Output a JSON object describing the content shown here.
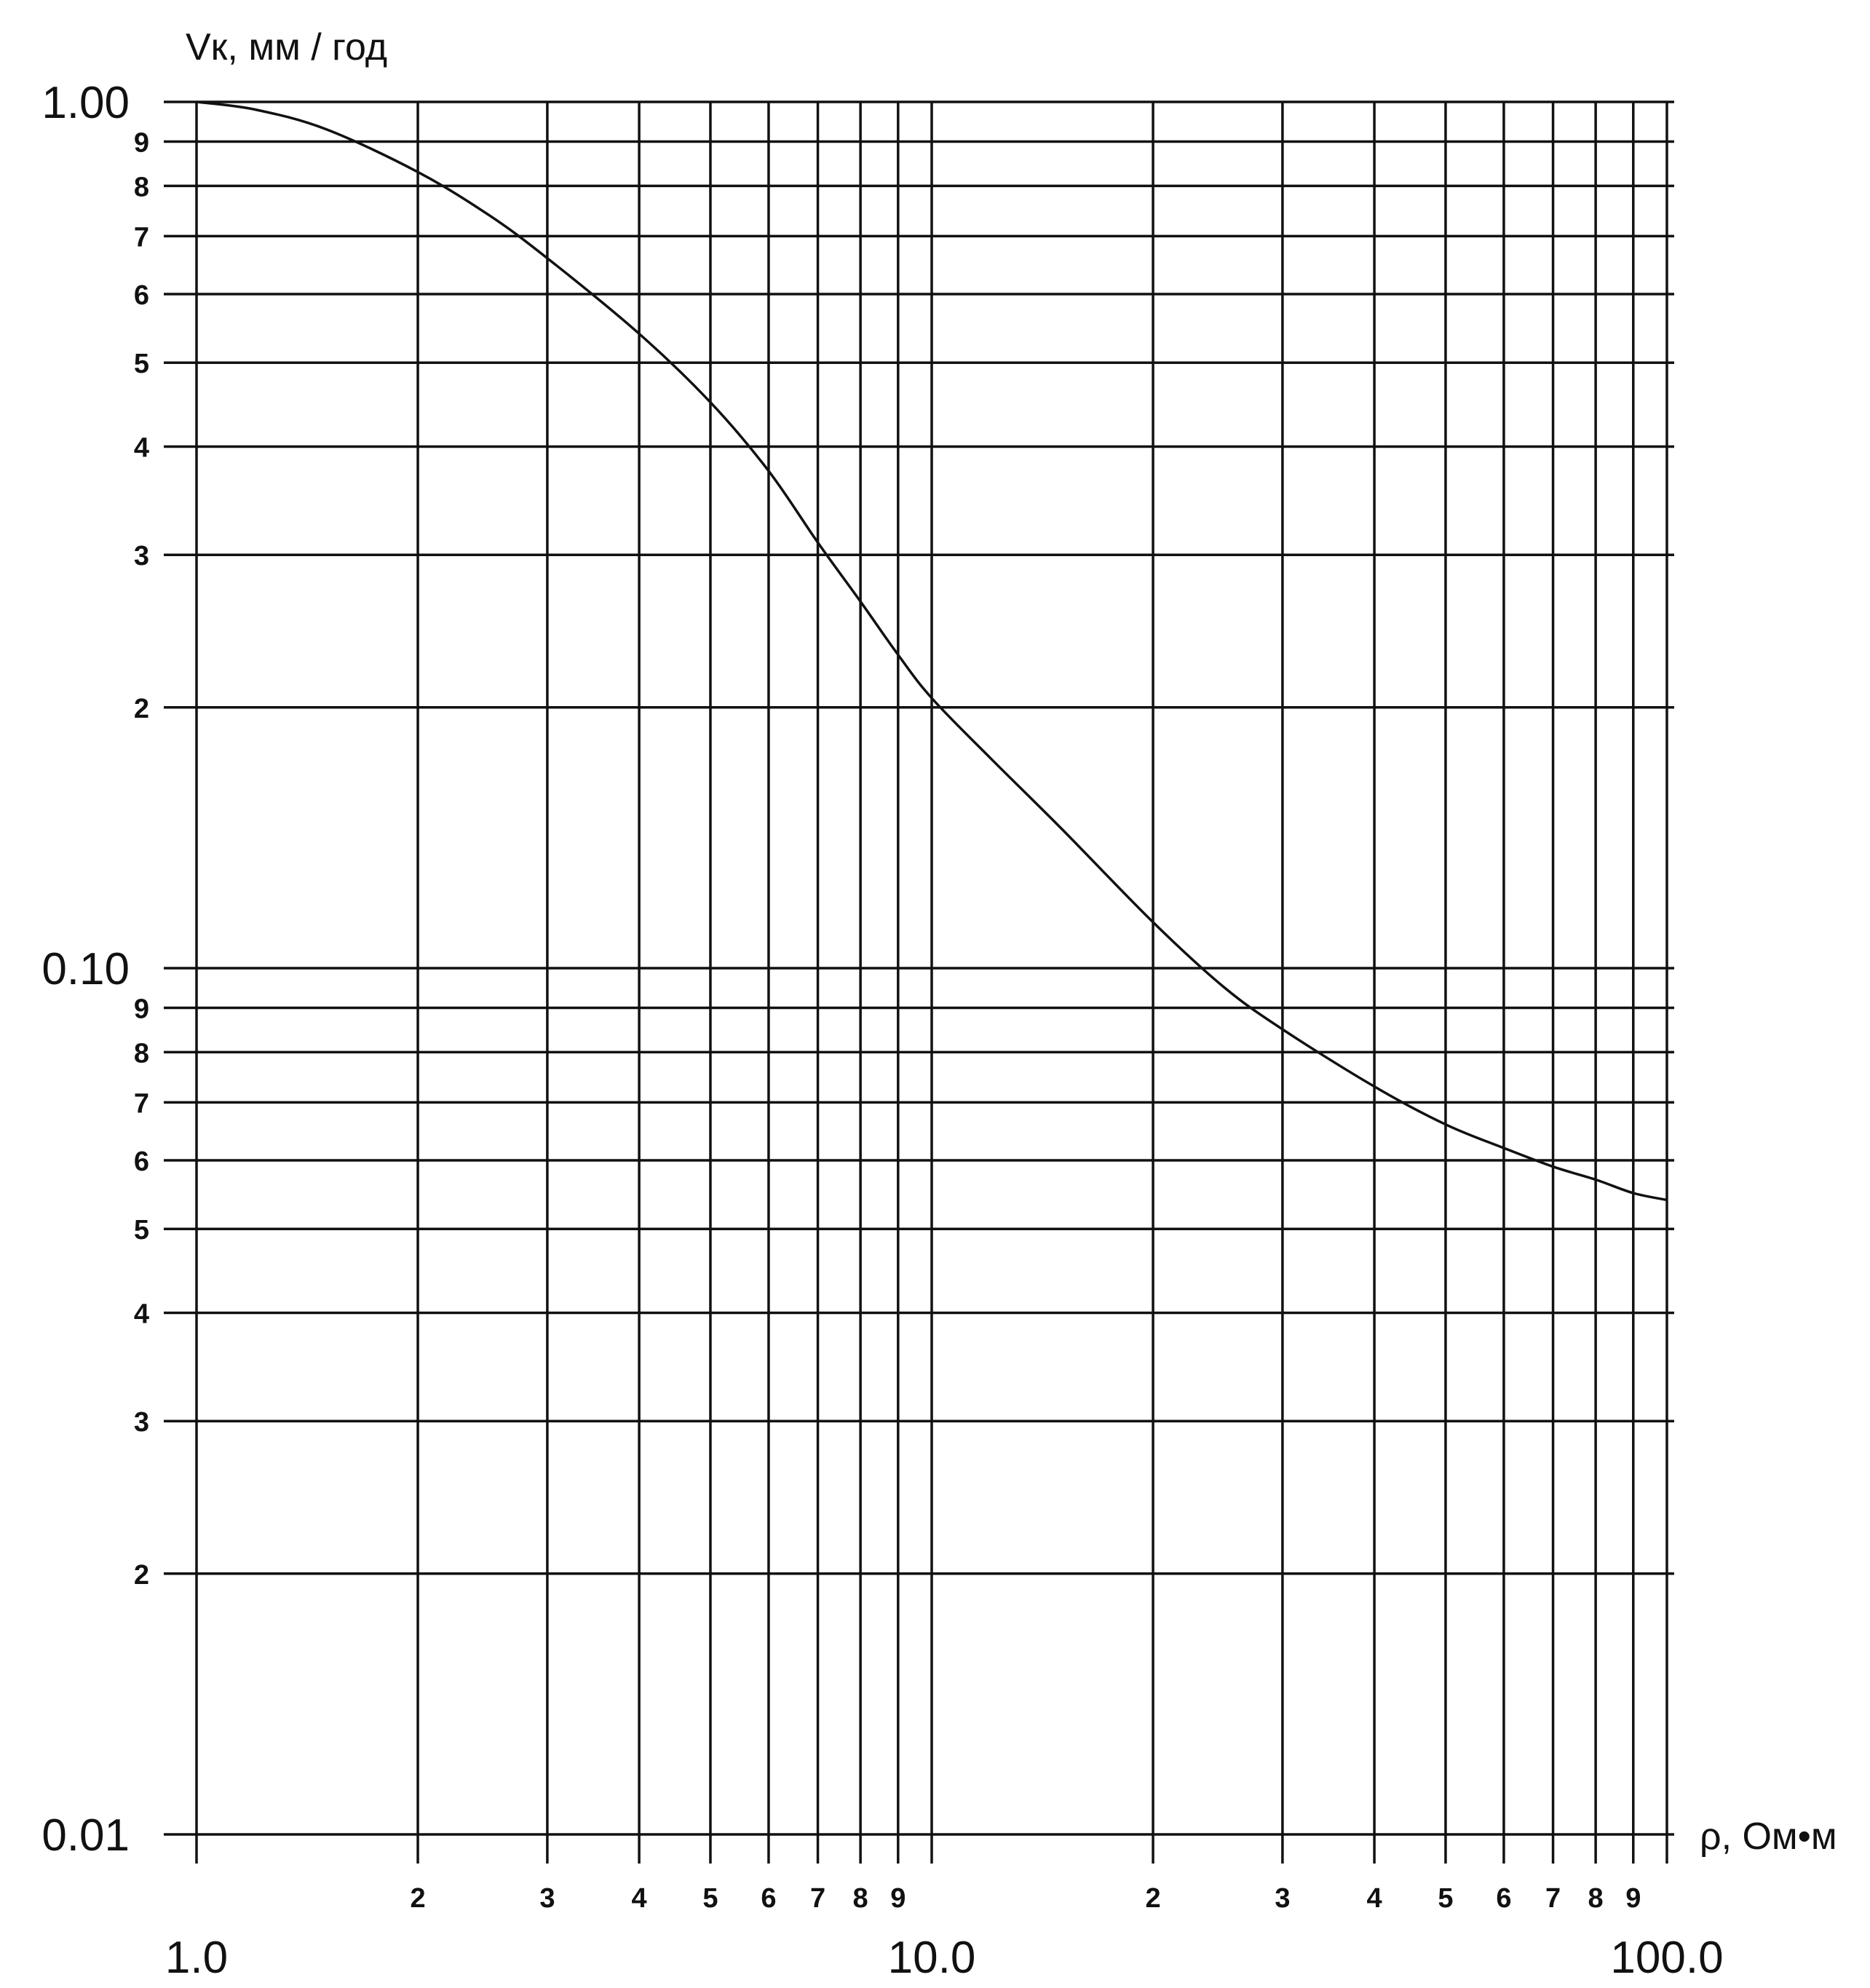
{
  "chart_data": {
    "type": "line",
    "title": "",
    "ylabel": "Vк, мм / год",
    "xlabel": "ρ, Ом•м",
    "x_scale": "log",
    "y_scale": "log",
    "xlim": [
      1,
      100
    ],
    "ylim": [
      0.01,
      1
    ],
    "grid": true,
    "x_major_ticks": [
      {
        "value": 1,
        "label": "1.0"
      },
      {
        "value": 10,
        "label": "10.0"
      },
      {
        "value": 100,
        "label": "100.0"
      }
    ],
    "x_minor_ticks": [
      {
        "value": 2,
        "label": "2"
      },
      {
        "value": 3,
        "label": "3"
      },
      {
        "value": 4,
        "label": "4"
      },
      {
        "value": 5,
        "label": "5"
      },
      {
        "value": 6,
        "label": "6"
      },
      {
        "value": 7,
        "label": "7"
      },
      {
        "value": 8,
        "label": "8"
      },
      {
        "value": 9,
        "label": "9"
      },
      {
        "value": 20,
        "label": "2"
      },
      {
        "value": 30,
        "label": "3"
      },
      {
        "value": 40,
        "label": "4"
      },
      {
        "value": 50,
        "label": "5"
      },
      {
        "value": 60,
        "label": "6"
      },
      {
        "value": 70,
        "label": "7"
      },
      {
        "value": 80,
        "label": "8"
      },
      {
        "value": 90,
        "label": "9"
      }
    ],
    "y_major_ticks": [
      {
        "value": 1,
        "label": "1.00"
      },
      {
        "value": 0.1,
        "label": "0.10"
      },
      {
        "value": 0.01,
        "label": "0.01"
      }
    ],
    "y_minor_ticks": [
      {
        "value": 0.9,
        "label": "9"
      },
      {
        "value": 0.8,
        "label": "8"
      },
      {
        "value": 0.7,
        "label": "7"
      },
      {
        "value": 0.6,
        "label": "6"
      },
      {
        "value": 0.5,
        "label": "5"
      },
      {
        "value": 0.4,
        "label": "4"
      },
      {
        "value": 0.3,
        "label": "3"
      },
      {
        "value": 0.2,
        "label": "2"
      },
      {
        "value": 0.09,
        "label": "9"
      },
      {
        "value": 0.08,
        "label": "8"
      },
      {
        "value": 0.07,
        "label": "7"
      },
      {
        "value": 0.06,
        "label": "6"
      },
      {
        "value": 0.05,
        "label": "5"
      },
      {
        "value": 0.04,
        "label": "4"
      },
      {
        "value": 0.03,
        "label": "3"
      },
      {
        "value": 0.02,
        "label": "2"
      }
    ],
    "series": [
      {
        "x": [
          1.0,
          1.2,
          1.5,
          2.0,
          2.5,
          3.0,
          4.0,
          5.0,
          6.0,
          7.0,
          8.0,
          9.0,
          10.0,
          12.0,
          15.0,
          20.0,
          25.0,
          30.0,
          40.0,
          50.0,
          60.0,
          70.0,
          80.0,
          90.0,
          100.0
        ],
        "y": [
          1.0,
          0.98,
          0.93,
          0.83,
          0.74,
          0.66,
          0.54,
          0.45,
          0.375,
          0.31,
          0.265,
          0.23,
          0.205,
          0.175,
          0.145,
          0.113,
          0.095,
          0.085,
          0.073,
          0.066,
          0.062,
          0.059,
          0.057,
          0.055,
          0.054
        ]
      }
    ]
  },
  "colors": {
    "ink": "#111111",
    "background": "#ffffff"
  }
}
